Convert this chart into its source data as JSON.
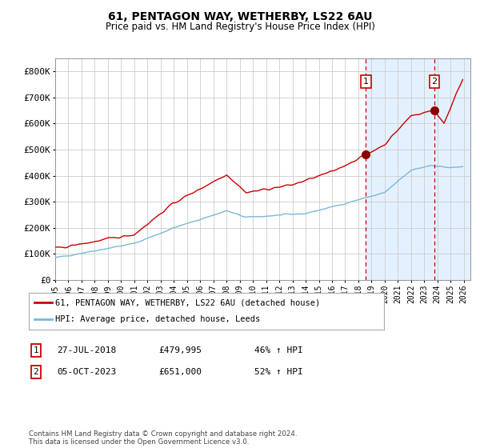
{
  "title1": "61, PENTAGON WAY, WETHERBY, LS22 6AU",
  "title2": "Price paid vs. HM Land Registry's House Price Index (HPI)",
  "ylabel_ticks": [
    "£0",
    "£100K",
    "£200K",
    "£300K",
    "£400K",
    "£500K",
    "£600K",
    "£700K",
    "£800K"
  ],
  "ytick_vals": [
    0,
    100000,
    200000,
    300000,
    400000,
    500000,
    600000,
    700000,
    800000
  ],
  "ylim": [
    0,
    850000
  ],
  "xlim_start": 1995.0,
  "xlim_end": 2026.5,
  "sale1_x": 2018.57,
  "sale1_y": 479995,
  "sale1_label": "1",
  "sale2_x": 2023.76,
  "sale2_y": 651000,
  "sale2_label": "2",
  "hpi_color": "#7ab8d9",
  "price_color": "#cc0000",
  "shade_color": "#ddeeff",
  "vline_color": "#cc0000",
  "grid_color": "#cccccc",
  "background_color": "#ffffff",
  "legend_label_price": "61, PENTAGON WAY, WETHERBY, LS22 6AU (detached house)",
  "legend_label_hpi": "HPI: Average price, detached house, Leeds",
  "annotation1_date": "27-JUL-2018",
  "annotation1_price": "£479,995",
  "annotation1_hpi": "46% ↑ HPI",
  "annotation2_date": "05-OCT-2023",
  "annotation2_price": "£651,000",
  "annotation2_hpi": "52% ↑ HPI",
  "footer": "Contains HM Land Registry data © Crown copyright and database right 2024.\nThis data is licensed under the Open Government Licence v3.0."
}
